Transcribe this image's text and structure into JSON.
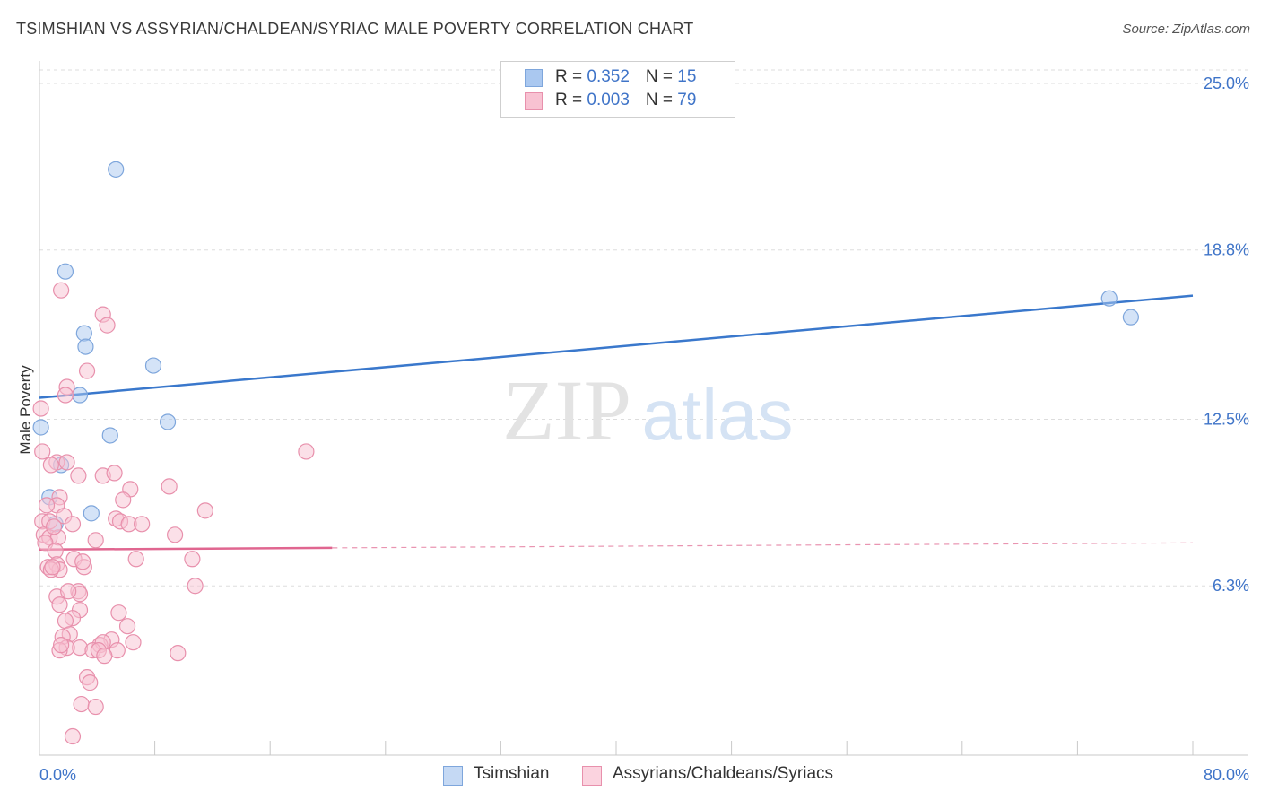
{
  "header": {
    "title": "TSIMSHIAN VS ASSYRIAN/CHALDEAN/SYRIAC MALE POVERTY CORRELATION CHART",
    "source": "Source: ZipAtlas.com"
  },
  "watermark": {
    "zip": "ZIP",
    "atlas": "atlas"
  },
  "legend": {
    "rows": [
      {
        "r_label": "R = ",
        "r_value": "0.352",
        "n_label": "N = ",
        "n_value": "15",
        "color": "#aac8f0",
        "border": "#7ea6dc"
      },
      {
        "r_label": "R = ",
        "r_value": "0.003",
        "n_label": "N = ",
        "n_value": "79",
        "color": "#f8c2d2",
        "border": "#e890ac"
      }
    ]
  },
  "bottom_legend": {
    "items": [
      {
        "label": "Tsimshian",
        "color": "#c5d9f4",
        "border": "#7ea6dc"
      },
      {
        "label": "Assyrians/Chaldeans/Syriacs",
        "color": "#fbd3df",
        "border": "#e890ac"
      }
    ]
  },
  "chart_data": {
    "type": "scatter",
    "title": "TSIMSHIAN VS ASSYRIAN/CHALDEAN/SYRIAC MALE POVERTY CORRELATION CHART",
    "xlabel": "",
    "ylabel": "Male Poverty",
    "xlim": [
      0,
      80
    ],
    "ylim": [
      0,
      25.5
    ],
    "x_tick_labels": [
      {
        "value": 0,
        "label": "0.0%"
      },
      {
        "value": 80,
        "label": "80.0%"
      }
    ],
    "y_tick_labels": [
      {
        "value": 6.3,
        "label": "6.3%"
      },
      {
        "value": 12.5,
        "label": "12.5%"
      },
      {
        "value": 18.8,
        "label": "18.8%"
      },
      {
        "value": 25.0,
        "label": "25.0%"
      }
    ],
    "x_minor_ticks": [
      0,
      8,
      16,
      24,
      32,
      40,
      48,
      56,
      64,
      72,
      80
    ],
    "grid": true,
    "colors": {
      "blue_fill": "#aac8f0",
      "blue_stroke": "#7ea6dc",
      "blue_line": "#3a78cc",
      "pink_fill": "#f8c2d2",
      "pink_stroke": "#e890ac",
      "pink_line": "#e06690",
      "axis_label": "#3f74c8",
      "grid": "#dddddd"
    },
    "series": [
      {
        "name": "Tsimshian",
        "color": "blue",
        "points": [
          [
            5.3,
            21.8
          ],
          [
            1.8,
            18.0
          ],
          [
            3.1,
            15.7
          ],
          [
            3.2,
            15.2
          ],
          [
            7.9,
            14.5
          ],
          [
            2.8,
            13.4
          ],
          [
            8.9,
            12.4
          ],
          [
            4.9,
            11.9
          ],
          [
            0.1,
            12.2
          ],
          [
            1.5,
            10.8
          ],
          [
            0.7,
            9.6
          ],
          [
            1.1,
            8.6
          ],
          [
            3.6,
            9.0
          ],
          [
            74.2,
            17.0
          ],
          [
            75.7,
            16.3
          ]
        ],
        "trend": {
          "x0": 0,
          "y0": 13.3,
          "x1": 80,
          "y1": 17.1,
          "dashed_from": null
        }
      },
      {
        "name": "Assyrians/Chaldeans/Syriacs",
        "color": "pink",
        "points": [
          [
            1.5,
            17.3
          ],
          [
            4.4,
            16.4
          ],
          [
            4.7,
            16.0
          ],
          [
            3.3,
            14.3
          ],
          [
            1.9,
            13.7
          ],
          [
            1.8,
            13.4
          ],
          [
            0.1,
            12.9
          ],
          [
            0.2,
            11.3
          ],
          [
            18.5,
            11.3
          ],
          [
            1.2,
            10.9
          ],
          [
            1.9,
            10.9
          ],
          [
            0.8,
            10.8
          ],
          [
            2.7,
            10.4
          ],
          [
            4.4,
            10.4
          ],
          [
            5.2,
            10.5
          ],
          [
            6.3,
            9.9
          ],
          [
            9.0,
            10.0
          ],
          [
            1.4,
            9.6
          ],
          [
            5.8,
            9.5
          ],
          [
            1.2,
            9.3
          ],
          [
            11.5,
            9.1
          ],
          [
            1.7,
            8.9
          ],
          [
            5.3,
            8.8
          ],
          [
            0.2,
            8.7
          ],
          [
            0.7,
            8.7
          ],
          [
            5.6,
            8.7
          ],
          [
            6.2,
            8.6
          ],
          [
            7.1,
            8.6
          ],
          [
            2.3,
            8.6
          ],
          [
            0.3,
            8.2
          ],
          [
            0.7,
            8.1
          ],
          [
            1.3,
            8.1
          ],
          [
            9.4,
            8.2
          ],
          [
            3.9,
            8.0
          ],
          [
            0.4,
            7.9
          ],
          [
            1.1,
            7.6
          ],
          [
            2.4,
            7.3
          ],
          [
            6.7,
            7.3
          ],
          [
            10.6,
            7.3
          ],
          [
            0.6,
            7.0
          ],
          [
            1.2,
            7.1
          ],
          [
            3.1,
            7.0
          ],
          [
            1.4,
            6.9
          ],
          [
            0.8,
            6.9
          ],
          [
            10.8,
            6.3
          ],
          [
            2.7,
            6.1
          ],
          [
            2.8,
            6.0
          ],
          [
            1.2,
            5.9
          ],
          [
            1.4,
            5.6
          ],
          [
            5.5,
            5.3
          ],
          [
            2.8,
            5.4
          ],
          [
            2.3,
            5.1
          ],
          [
            1.8,
            5.0
          ],
          [
            6.1,
            4.8
          ],
          [
            2.1,
            4.5
          ],
          [
            1.6,
            4.4
          ],
          [
            5.0,
            4.3
          ],
          [
            4.2,
            4.1
          ],
          [
            4.4,
            4.2
          ],
          [
            2.8,
            4.0
          ],
          [
            1.9,
            4.0
          ],
          [
            1.4,
            3.9
          ],
          [
            3.7,
            3.9
          ],
          [
            5.4,
            3.9
          ],
          [
            4.1,
            3.9
          ],
          [
            9.6,
            3.8
          ],
          [
            4.5,
            3.7
          ],
          [
            3.3,
            2.9
          ],
          [
            3.5,
            2.7
          ],
          [
            2.9,
            1.9
          ],
          [
            3.9,
            1.8
          ],
          [
            2.3,
            0.7
          ],
          [
            0.9,
            7.0
          ],
          [
            1.0,
            8.5
          ],
          [
            0.5,
            9.3
          ],
          [
            2.0,
            6.1
          ],
          [
            3.0,
            7.2
          ],
          [
            6.5,
            4.2
          ],
          [
            1.5,
            4.1
          ]
        ],
        "trend": {
          "x0": 0,
          "y0": 7.65,
          "x1": 80,
          "y1": 7.9,
          "dashed_from": 20.3
        }
      }
    ]
  }
}
